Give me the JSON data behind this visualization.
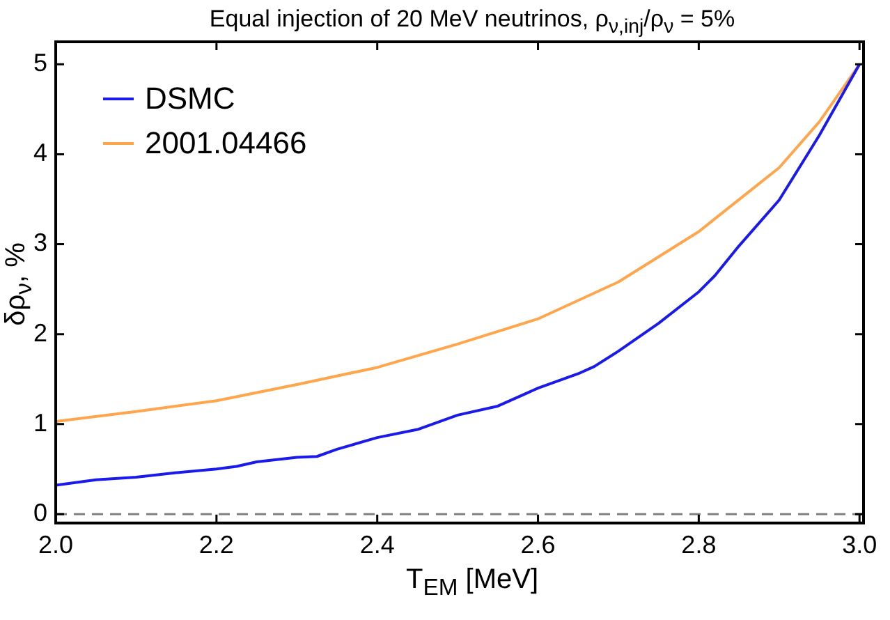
{
  "chart_data": {
    "type": "line",
    "title": "Equal injection of 20 MeV neutrinos, ρ$_{ν,inj}$/ρ$_{ν}$ = 5%",
    "xlabel": "T$_{EM}$ [MeV]",
    "ylabel": "δρ$_{ν}$, %",
    "xlim": [
      2,
      3.005
    ],
    "xticks": [
      {
        "value": 2,
        "label": "2.0"
      },
      {
        "value": 2.2,
        "label": "2.2"
      },
      {
        "value": 2.4,
        "label": "2.4"
      },
      {
        "value": 2.6,
        "label": "2.6"
      },
      {
        "value": 2.8,
        "label": "2.8"
      },
      {
        "value": 3,
        "label": "3.0"
      }
    ],
    "ylim": [
      -0.1,
      5.25
    ],
    "yticks": [
      0,
      1,
      2,
      3,
      4,
      5
    ],
    "grid": false,
    "legend": "top left",
    "marker": "none",
    "line_style": "solid",
    "ref_lines": [
      {
        "axis": "y",
        "value": 0,
        "label": null,
        "color": "#808080",
        "line_style": "dashed"
      }
    ],
    "series": [
      {
        "name": "DSMC",
        "color": "#1a1aeb",
        "x": [
          2.0,
          2.05,
          2.1,
          2.15,
          2.2,
          2.225,
          2.25,
          2.3,
          2.325,
          2.35,
          2.4,
          2.45,
          2.5,
          2.55,
          2.6,
          2.65,
          2.67,
          2.7,
          2.75,
          2.8,
          2.82,
          2.85,
          2.9,
          2.95,
          3.0
        ],
        "values": [
          0.32,
          0.38,
          0.41,
          0.46,
          0.5,
          0.53,
          0.58,
          0.63,
          0.64,
          0.72,
          0.85,
          0.94,
          1.1,
          1.2,
          1.4,
          1.56,
          1.64,
          1.81,
          2.12,
          2.47,
          2.65,
          2.98,
          3.49,
          4.21,
          5.0
        ]
      },
      {
        "name": "2001.04466",
        "color": "#ffa64d",
        "x": [
          2.0,
          2.1,
          2.2,
          2.3,
          2.4,
          2.5,
          2.6,
          2.7,
          2.8,
          2.9,
          2.95,
          3.0
        ],
        "values": [
          1.03,
          1.14,
          1.26,
          1.44,
          1.63,
          1.89,
          2.17,
          2.58,
          3.14,
          3.85,
          4.36,
          5.0
        ]
      }
    ]
  }
}
